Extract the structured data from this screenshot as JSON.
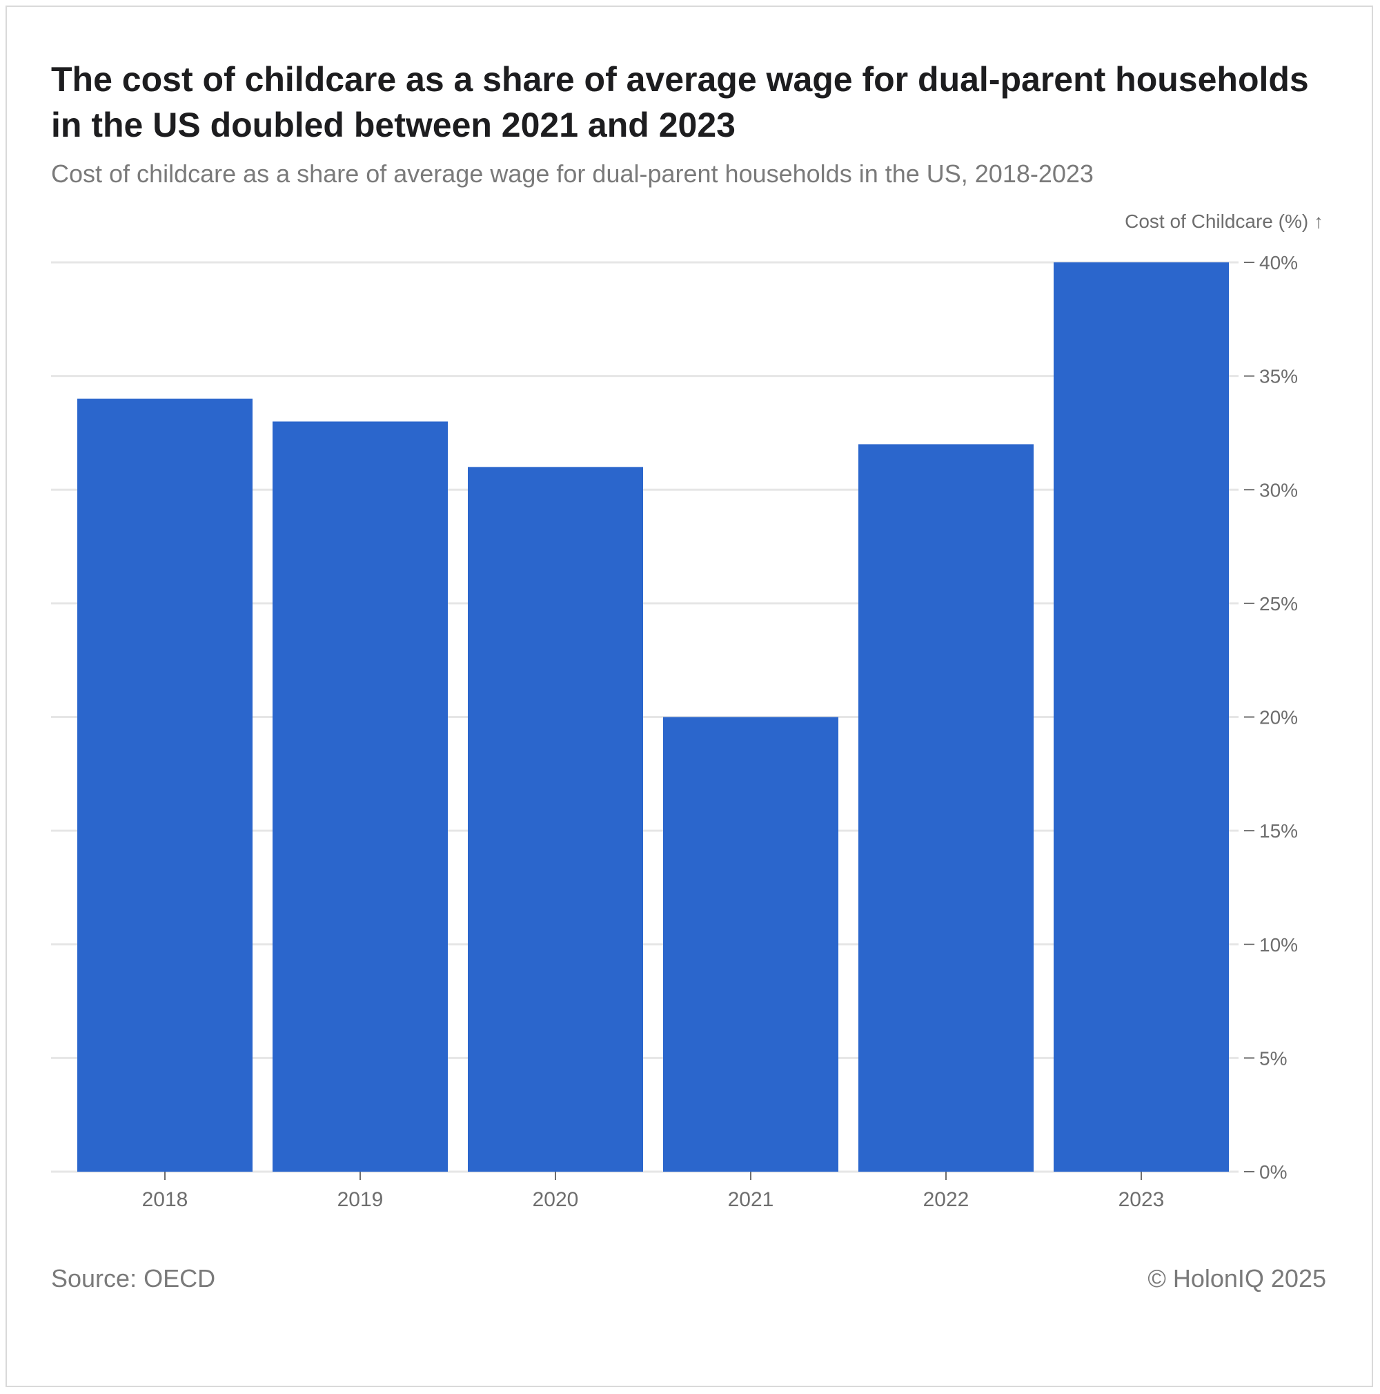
{
  "header": {
    "title": "The cost of childcare as a share of average wage for dual-parent households in the US doubled between 2021 and 2023",
    "subtitle": "Cost of childcare as a share of average wage for dual-parent households in the US, 2018-2023"
  },
  "footer": {
    "source": "Source: OECD",
    "copyright": "© HolonIQ 2025"
  },
  "colors": {
    "bar": "#2b66cc",
    "grid": "#e6e6e6",
    "tick_text": "#6e6e6e"
  },
  "chart_data": {
    "type": "bar",
    "title": "The cost of childcare as a share of average wage for dual-parent households in the US doubled between 2021 and 2023",
    "subtitle": "Cost of childcare as a share of average wage for dual-parent households in the US, 2018-2023",
    "categories": [
      "2018",
      "2019",
      "2020",
      "2021",
      "2022",
      "2023"
    ],
    "values": [
      34,
      33,
      31,
      20,
      32,
      40
    ],
    "xlabel": "",
    "ylabel": "Cost of Childcare (%) ↑",
    "ylim": [
      0,
      40
    ],
    "yticks": [
      0,
      5,
      10,
      15,
      20,
      25,
      30,
      35,
      40
    ],
    "ytick_labels": [
      "0%",
      "5%",
      "10%",
      "15%",
      "20%",
      "25%",
      "30%",
      "35%",
      "40%"
    ],
    "y_axis_side": "right",
    "grid": true,
    "legend": "none"
  }
}
